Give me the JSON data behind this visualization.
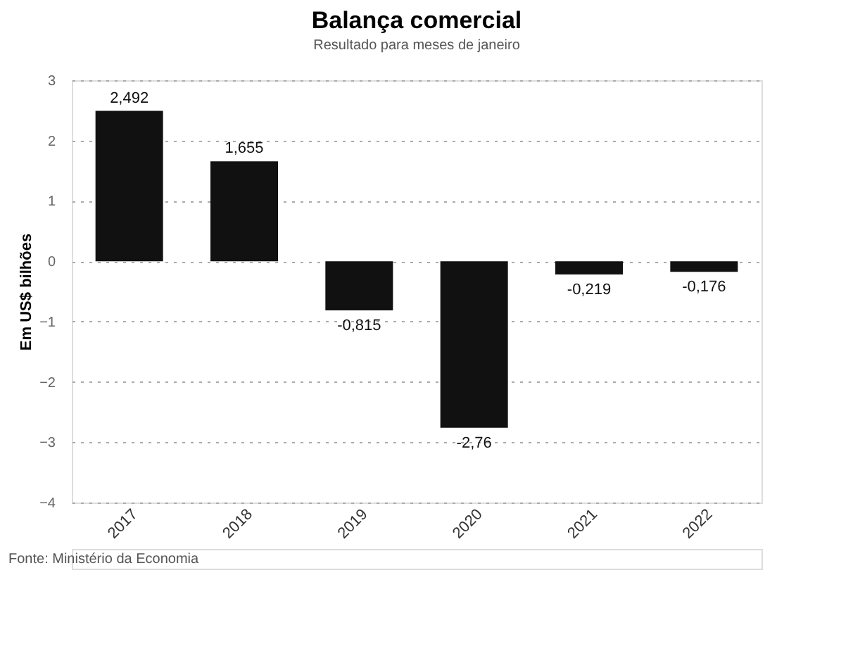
{
  "chart_data": {
    "type": "bar",
    "title": "Balança comercial",
    "subtitle": "Resultado para meses de janeiro",
    "ylabel": "Em US$ bilhões",
    "categories": [
      "2017",
      "2018",
      "2019",
      "2020",
      "2021",
      "2022"
    ],
    "values": [
      2.492,
      1.655,
      -0.815,
      -2.76,
      -0.219,
      -0.176
    ],
    "value_labels": [
      "2,492",
      "1,655",
      "-0,815",
      "-2,76",
      "-0,219",
      "-0,176"
    ],
    "color": "#111111",
    "ylim": [
      -4,
      3
    ],
    "yticks": [
      -4,
      -3,
      -2,
      -1,
      0,
      1,
      2,
      3
    ],
    "grid": "y",
    "annotations": [
      "Fonte: Ministério da Economia"
    ]
  }
}
